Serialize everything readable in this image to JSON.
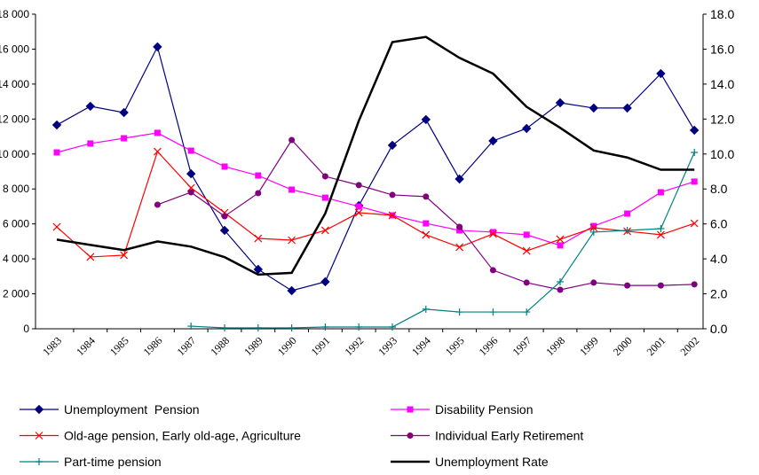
{
  "chart_data": {
    "type": "line",
    "categories": [
      "1983",
      "1984",
      "1985",
      "1986",
      "1987",
      "1988",
      "1989",
      "1990",
      "1991",
      "1992",
      "1993",
      "1994",
      "1995",
      "1996",
      "1997",
      "1998",
      "1999",
      "2000",
      "2001",
      "2002"
    ],
    "ylim": [
      0,
      18000
    ],
    "yticks": [
      0,
      {
        "value": 2000,
        "label": "2 000"
      },
      {
        "value": 4000,
        "label": "4 000"
      },
      {
        "value": 6000,
        "label": "6 000"
      },
      {
        "value": 8000,
        "label": "8 000"
      },
      {
        "value": 10000,
        "label": "10 000"
      },
      {
        "value": 12000,
        "label": "12 000"
      },
      {
        "value": 14000,
        "label": "14 000"
      },
      {
        "value": 16000,
        "label": "16 000"
      },
      {
        "value": 18000,
        "label": "18 000"
      }
    ],
    "y2lim": [
      0,
      18
    ],
    "y2ticks": [
      {
        "value": 0,
        "label": "0.0"
      },
      {
        "value": 2,
        "label": "2.0"
      },
      {
        "value": 4,
        "label": "4.0"
      },
      {
        "value": 6,
        "label": "6.0"
      },
      {
        "value": 8,
        "label": "8.0"
      },
      {
        "value": 10,
        "label": "10.0"
      },
      {
        "value": 12,
        "label": "12.0"
      },
      {
        "value": 14,
        "label": "14.0"
      },
      {
        "value": 16,
        "label": "16.0"
      },
      {
        "value": 18,
        "label": "18.0"
      }
    ],
    "grid": false,
    "legend": "bottom",
    "series": [
      {
        "name": "Unemployment  Pension",
        "color": "#000080",
        "marker": "diamond",
        "values": [
          11660,
          12730,
          12370,
          16130,
          8870,
          5630,
          3400,
          2180,
          2690,
          7050,
          10500,
          11970,
          8570,
          10750,
          11460,
          12930,
          12630,
          12630,
          14600,
          11360
        ]
      },
      {
        "name": "Disability Pension",
        "color": "#ff00ff",
        "marker": "square",
        "values": [
          10090,
          10600,
          10900,
          11210,
          10190,
          9280,
          8770,
          7960,
          7500,
          7000,
          6490,
          6030,
          5630,
          5530,
          5380,
          4770,
          5880,
          6590,
          7810,
          8420
        ]
      },
      {
        "name": "Old-age pension, Early old-age, Agriculture",
        "color": "#ff0000",
        "marker": "x",
        "values": [
          5830,
          4110,
          4210,
          10140,
          8060,
          6640,
          5170,
          5070,
          5630,
          6640,
          6490,
          5380,
          4670,
          5430,
          4460,
          5120,
          5780,
          5580,
          5380,
          6030
        ]
      },
      {
        "name": "Individual Early Retirement",
        "color": "#800080",
        "marker": "circle",
        "values": [
          null,
          null,
          null,
          7100,
          7810,
          6440,
          7760,
          10800,
          8720,
          8220,
          7660,
          7560,
          5830,
          3350,
          2640,
          2230,
          2640,
          2480,
          2480,
          2540
        ]
      },
      {
        "name": "Part-time pension",
        "color": "#008080",
        "marker": "plus",
        "values": [
          null,
          null,
          null,
          null,
          150,
          50,
          50,
          50,
          100,
          100,
          100,
          1120,
          960,
          960,
          960,
          2690,
          5530,
          5630,
          5730,
          10090
        ]
      },
      {
        "name": "Unemployment Rate",
        "color": "#000000",
        "marker": "none",
        "axis": "y2",
        "values": [
          5.1,
          4.8,
          4.5,
          5.0,
          4.7,
          4.1,
          3.1,
          3.2,
          6.6,
          11.9,
          16.4,
          16.7,
          15.5,
          14.6,
          12.7,
          11.5,
          10.2,
          9.8,
          9.1,
          9.1
        ]
      }
    ]
  }
}
